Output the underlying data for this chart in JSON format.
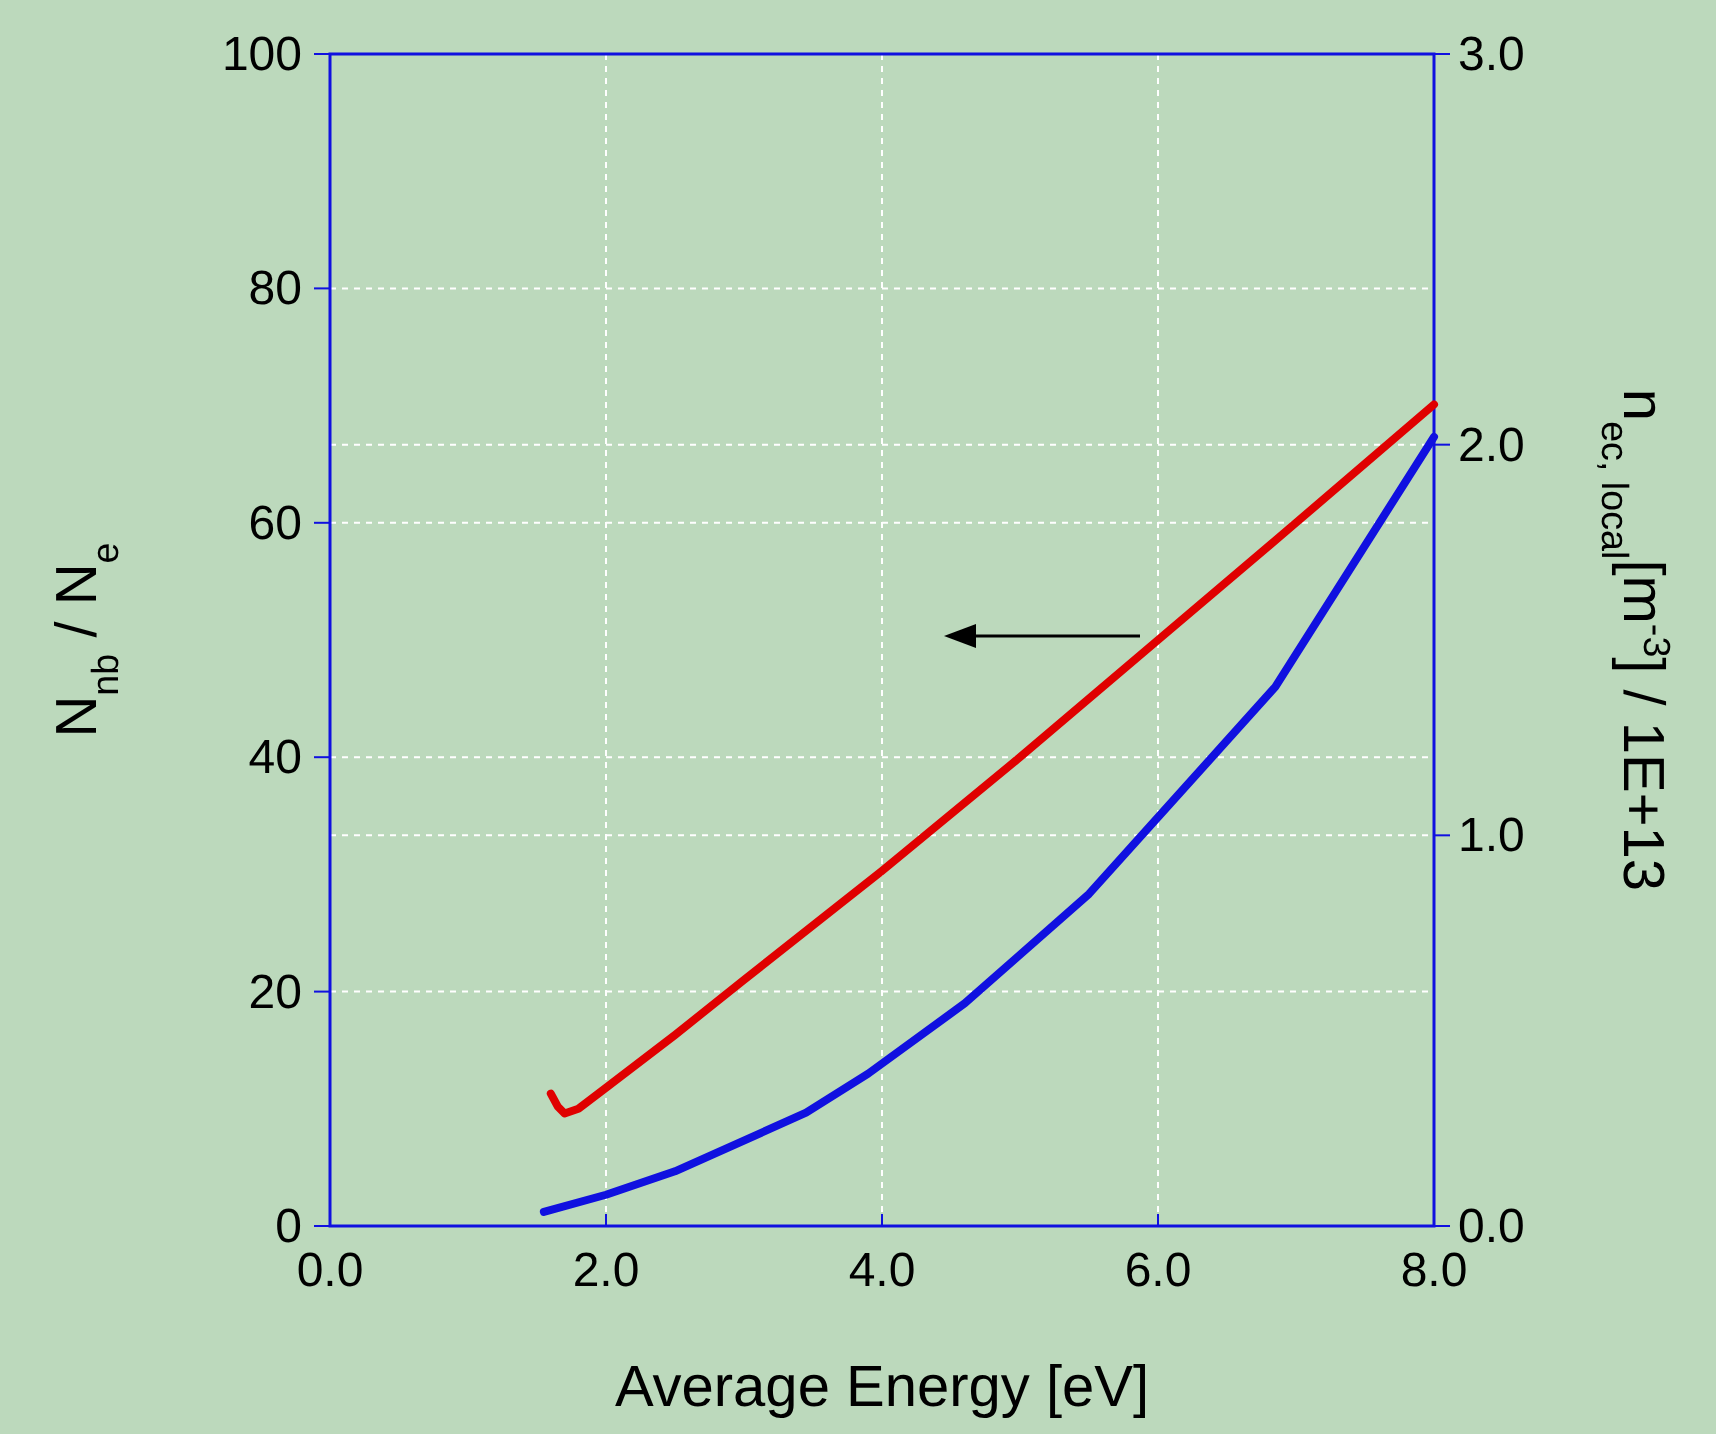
{
  "chart_data": {
    "type": "line",
    "xlabel": "Average Energy [eV]",
    "ylabel": "N$_{nb}$ / N$_{e}$",
    "y2label": "n$_{ec, local}$[m$^{-3}$] / 1E+13",
    "xlim": [
      0,
      8
    ],
    "xticks": [
      {
        "value": 0,
        "label": "0.0"
      },
      {
        "value": 2,
        "label": "2.0"
      },
      {
        "value": 4,
        "label": "4.0"
      },
      {
        "value": 6,
        "label": "6.0"
      },
      {
        "value": 8,
        "label": "8.0"
      }
    ],
    "ylim": [
      0,
      100
    ],
    "yticks": [
      0,
      20,
      40,
      60,
      80,
      100
    ],
    "y2lim": [
      0,
      3
    ],
    "y2ticks": [
      {
        "value": 0,
        "label": "0.0"
      },
      {
        "value": 1,
        "label": "1.0"
      },
      {
        "value": 2,
        "label": "2.0"
      },
      {
        "value": 3,
        "label": "3.0"
      }
    ],
    "grid": true,
    "line_style": "solid",
    "marker": "none",
    "series": [
      {
        "color": "#e00000",
        "x": [
          1.6,
          1.65,
          1.7,
          1.8,
          2.0,
          2.5,
          3.0,
          4.0,
          5.0,
          6.0,
          7.0,
          8.0
        ],
        "values": [
          11.3,
          10.2,
          9.6,
          10.0,
          11.8,
          16.3,
          21.0,
          30.3,
          40.0,
          50.0,
          60.0,
          70.1
        ]
      },
      {
        "color": "#1010e0",
        "axis": "y2",
        "x": [
          1.55,
          2.0,
          2.5,
          3.45,
          3.9,
          4.6,
          5.5,
          6.85,
          8.0
        ],
        "values": [
          0.036,
          0.08,
          0.14,
          0.29,
          0.39,
          0.57,
          0.85,
          1.38,
          2.02
        ]
      }
    ]
  }
}
